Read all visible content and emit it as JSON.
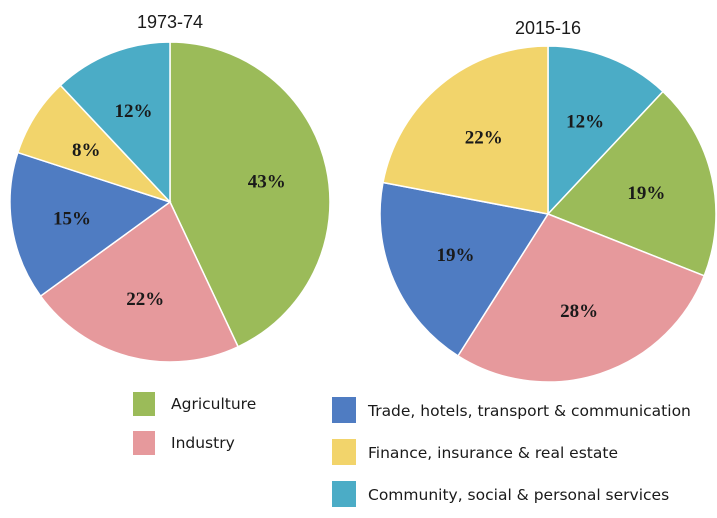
{
  "chart_data": [
    {
      "type": "pie",
      "title": "1973-74",
      "slices": [
        {
          "name": "Agriculture",
          "value": 43,
          "label": "43%",
          "color": "#9bbb59"
        },
        {
          "name": "Industry",
          "value": 22,
          "label": "22%",
          "color": "#e6999c"
        },
        {
          "name": "Trade, hotels, transport & communication",
          "value": 15,
          "label": "15%",
          "color": "#4f7cc2"
        },
        {
          "name": "Finance, insurance & real estate",
          "value": 8,
          "label": "8%",
          "color": "#f2d46b"
        },
        {
          "name": "Community, social & personal services",
          "value": 12,
          "label": "12%",
          "color": "#4bacc6"
        }
      ]
    },
    {
      "type": "pie",
      "title": "2015-16",
      "slices": [
        {
          "name": "Community, social & personal services",
          "value": 12,
          "label": "12%",
          "color": "#4bacc6"
        },
        {
          "name": "Agriculture",
          "value": 19,
          "label": "19%",
          "color": "#9bbb59"
        },
        {
          "name": "Industry",
          "value": 28,
          "label": "28%",
          "color": "#e6999c"
        },
        {
          "name": "Trade, hotels, transport & communication",
          "value": 19,
          "label": "19%",
          "color": "#4f7cc2"
        },
        {
          "name": "Finance, insurance & real estate",
          "value": 22,
          "label": "22%",
          "color": "#f2d46b"
        }
      ]
    }
  ],
  "legend": [
    {
      "label": "Agriculture",
      "color": "#9bbb59"
    },
    {
      "label": "Industry",
      "color": "#e6999c"
    },
    {
      "label": "Trade, hotels, transport & communication",
      "color": "#4f7cc2"
    },
    {
      "label": "Finance, insurance & real estate",
      "color": "#f2d46b"
    },
    {
      "label": "Community, social & personal services",
      "color": "#4bacc6"
    }
  ]
}
